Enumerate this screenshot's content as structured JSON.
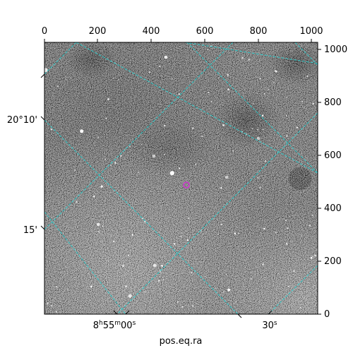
{
  "figure": {
    "top_axis_ticks": [
      "0",
      "200",
      "400",
      "600",
      "800",
      "1000"
    ],
    "right_axis_ticks": [
      "0",
      "200",
      "400",
      "600",
      "800",
      "1000"
    ],
    "left_axis_ticks": [
      "20°10'",
      "15'"
    ],
    "bottom_axis_ticks": {
      "ra_main_prefix": "8",
      "ra_main_h": "h",
      "ra_main_mid": "55",
      "ra_main_m": "m",
      "ra_main_sec": "00",
      "ra_main_s": "s",
      "ra_second_val": "30",
      "ra_second_s": "s"
    },
    "xlabel": "pos.eq.ra",
    "colors": {
      "grid": "#2fc7c7",
      "marker": "#cc33cc",
      "frame": "#000000"
    },
    "marker": {
      "shape": "circle"
    },
    "image": {
      "colormap": "grayscale",
      "subject": "star field"
    }
  }
}
